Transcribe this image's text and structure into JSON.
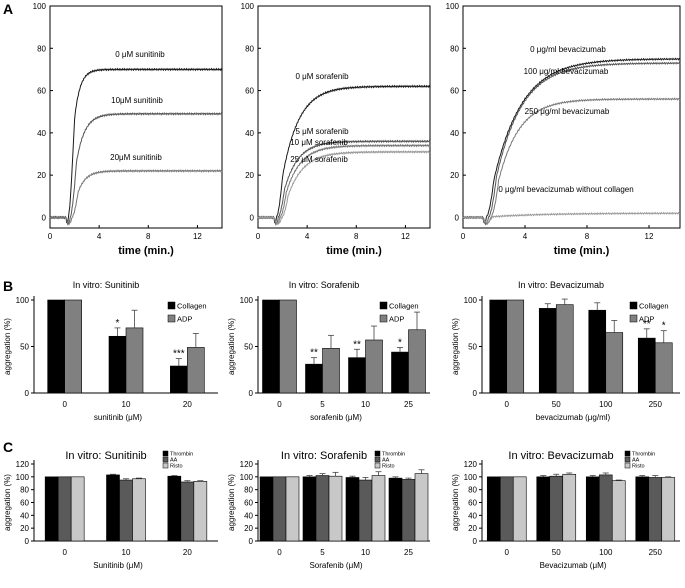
{
  "panel_labels": [
    "A",
    "B",
    "C"
  ],
  "chart_data": [
    {
      "id": "A1",
      "type": "line",
      "panel": "A",
      "xlabel": "time (min.)",
      "x_ticks": [
        0,
        4,
        8,
        12
      ],
      "y_ticks": [
        0,
        20,
        40,
        60,
        80,
        100
      ],
      "xlim": [
        0,
        14
      ],
      "ylim": [
        -5,
        100
      ],
      "series": [
        {
          "name": "0 μM sunitinib",
          "plateau": 70,
          "rate": 2.2
        },
        {
          "name": "10μM sunitinib",
          "plateau": 49,
          "rate": 1.5
        },
        {
          "name": "20μM sunitinib",
          "plateau": 22,
          "rate": 1.6
        }
      ]
    },
    {
      "id": "A2",
      "type": "line",
      "panel": "A",
      "xlabel": "time (min.)",
      "x_ticks": [
        0,
        4,
        8,
        12
      ],
      "y_ticks": [
        0,
        20,
        40,
        60,
        80,
        100
      ],
      "xlim": [
        0,
        14
      ],
      "ylim": [
        -5,
        100
      ],
      "series": [
        {
          "name": "0 μM sorafenib",
          "plateau": 62,
          "rate": 0.75
        },
        {
          "name": "5 μM sorafenib",
          "plateau": 36,
          "rate": 0.9
        },
        {
          "name": "10 μM sorafenib",
          "plateau": 34,
          "rate": 0.85
        },
        {
          "name": "25 μM sorafenib",
          "plateau": 31,
          "rate": 0.8
        }
      ]
    },
    {
      "id": "A3",
      "type": "line",
      "panel": "A",
      "xlabel": "time (min.)",
      "x_ticks": [
        0,
        4,
        8,
        12
      ],
      "y_ticks": [
        0,
        20,
        40,
        60,
        80,
        100
      ],
      "xlim": [
        0,
        14
      ],
      "ylim": [
        -5,
        100
      ],
      "series": [
        {
          "name": "0 μg/ml bevacizumab",
          "plateau": 75,
          "rate": 0.55
        },
        {
          "name": "100 μg/ml bevacizumab",
          "plateau": 73,
          "rate": 0.6
        },
        {
          "name": "250 μg/ml bevacizumab",
          "plateau": 56,
          "rate": 0.75
        },
        {
          "name": "0 μg/ml bevacizumab without collagen",
          "plateau": 2,
          "rate": 0.3,
          "flat": true
        }
      ]
    },
    {
      "id": "B1",
      "type": "bar",
      "panel": "B",
      "title": "In vitro: Sunitinib",
      "xlabel": "sunitinib (μM)",
      "ylabel": "aggregation (%)",
      "categories": [
        "0",
        "10",
        "20"
      ],
      "ylim": [
        0,
        100
      ],
      "y_ticks": [
        0,
        50,
        100
      ],
      "series": [
        {
          "name": "Collagen",
          "color": "#000000",
          "values": [
            100,
            61,
            29
          ],
          "errors": [
            0,
            9,
            8
          ]
        },
        {
          "name": "ADP",
          "color": "#808080",
          "values": [
            100,
            70,
            49
          ],
          "errors": [
            0,
            19,
            15
          ]
        }
      ],
      "annotations": [
        {
          "category": "10",
          "series": "Collagen",
          "text": "*"
        },
        {
          "category": "20",
          "series": "Collagen",
          "text": "***"
        }
      ]
    },
    {
      "id": "B2",
      "type": "bar",
      "panel": "B",
      "title": "In vitro: Sorafenib",
      "xlabel": "sorafenib (μM)",
      "ylabel": "aggregation (%)",
      "categories": [
        "0",
        "5",
        "10",
        "25"
      ],
      "ylim": [
        0,
        100
      ],
      "y_ticks": [
        0,
        50,
        100
      ],
      "series": [
        {
          "name": "Collagen",
          "color": "#000000",
          "values": [
            100,
            31,
            38,
            44
          ],
          "errors": [
            0,
            7,
            9,
            5
          ]
        },
        {
          "name": "ADP",
          "color": "#808080",
          "values": [
            100,
            48,
            57,
            68
          ],
          "errors": [
            0,
            14,
            15,
            19
          ]
        }
      ],
      "annotations": [
        {
          "category": "5",
          "series": "Collagen",
          "text": "**"
        },
        {
          "category": "10",
          "series": "Collagen",
          "text": "**"
        },
        {
          "category": "25",
          "series": "Collagen",
          "text": "*"
        }
      ]
    },
    {
      "id": "B3",
      "type": "bar",
      "panel": "B",
      "title": "In vitro: Bevacizumab",
      "xlabel": "bevacizumab (μg/ml)",
      "ylabel": "aggregation (%)",
      "categories": [
        "0",
        "50",
        "100",
        "250"
      ],
      "ylim": [
        0,
        100
      ],
      "y_ticks": [
        0,
        50,
        100
      ],
      "series": [
        {
          "name": "Collagen",
          "color": "#000000",
          "values": [
            100,
            91,
            89,
            59
          ],
          "errors": [
            0,
            5,
            8,
            10
          ]
        },
        {
          "name": "ADP",
          "color": "#808080",
          "values": [
            100,
            95,
            65,
            54
          ],
          "errors": [
            0,
            6,
            13,
            13
          ]
        }
      ],
      "annotations": [
        {
          "category": "250",
          "series": "Collagen",
          "text": "**"
        },
        {
          "category": "250",
          "series": "ADP",
          "text": "*"
        }
      ]
    },
    {
      "id": "C1",
      "type": "bar",
      "panel": "C",
      "title": "In vitro: Sunitinib",
      "xlabel": "Sunitinib (μM)",
      "ylabel": "aggregation (%)",
      "categories": [
        "0",
        "10",
        "20"
      ],
      "ylim": [
        0,
        120
      ],
      "y_ticks": [
        0,
        20,
        40,
        60,
        80,
        100,
        120
      ],
      "series": [
        {
          "name": "Thrombin",
          "color": "#000000",
          "values": [
            100,
            103,
            101
          ],
          "errors": [
            0,
            1,
            1
          ]
        },
        {
          "name": "AA",
          "color": "#5a5a5a",
          "values": [
            100,
            95,
            92
          ],
          "errors": [
            0,
            2,
            2
          ]
        },
        {
          "name": "Risto",
          "color": "#c8c8c8",
          "values": [
            100,
            97,
            93
          ],
          "errors": [
            0,
            1,
            1
          ]
        }
      ]
    },
    {
      "id": "C2",
      "type": "bar",
      "panel": "C",
      "title": "In vitro: Sorafenib",
      "xlabel": "Sorafenib (μM)",
      "ylabel": "aggregation (%)",
      "categories": [
        "0",
        "5",
        "10",
        "25"
      ],
      "ylim": [
        0,
        120
      ],
      "y_ticks": [
        0,
        20,
        40,
        60,
        80,
        100,
        120
      ],
      "series": [
        {
          "name": "Thrombin",
          "color": "#000000",
          "values": [
            100,
            100,
            99,
            98
          ],
          "errors": [
            0,
            2,
            2,
            2
          ]
        },
        {
          "name": "AA",
          "color": "#5a5a5a",
          "values": [
            100,
            102,
            95,
            96
          ],
          "errors": [
            0,
            3,
            4,
            2
          ]
        },
        {
          "name": "Risto",
          "color": "#c8c8c8",
          "values": [
            100,
            101,
            102,
            105
          ],
          "errors": [
            0,
            6,
            6,
            6
          ]
        }
      ]
    },
    {
      "id": "C3",
      "type": "bar",
      "panel": "C",
      "title": "In vitro: Bevacizumab",
      "xlabel": "Bevacizumab (μM)",
      "ylabel": "aggregation (%)",
      "categories": [
        "0",
        "50",
        "100",
        "250"
      ],
      "ylim": [
        0,
        120
      ],
      "y_ticks": [
        0,
        20,
        40,
        60,
        80,
        100,
        120
      ],
      "series": [
        {
          "name": "Thrombin",
          "color": "#000000",
          "values": [
            100,
            100,
            100,
            100
          ],
          "errors": [
            0,
            2,
            2,
            2
          ]
        },
        {
          "name": "AA",
          "color": "#5a5a5a",
          "values": [
            100,
            101,
            103,
            99
          ],
          "errors": [
            0,
            3,
            3,
            3
          ]
        },
        {
          "name": "Risto",
          "color": "#c8c8c8",
          "values": [
            100,
            104,
            94,
            99
          ],
          "errors": [
            0,
            2,
            1,
            1
          ]
        }
      ]
    }
  ]
}
